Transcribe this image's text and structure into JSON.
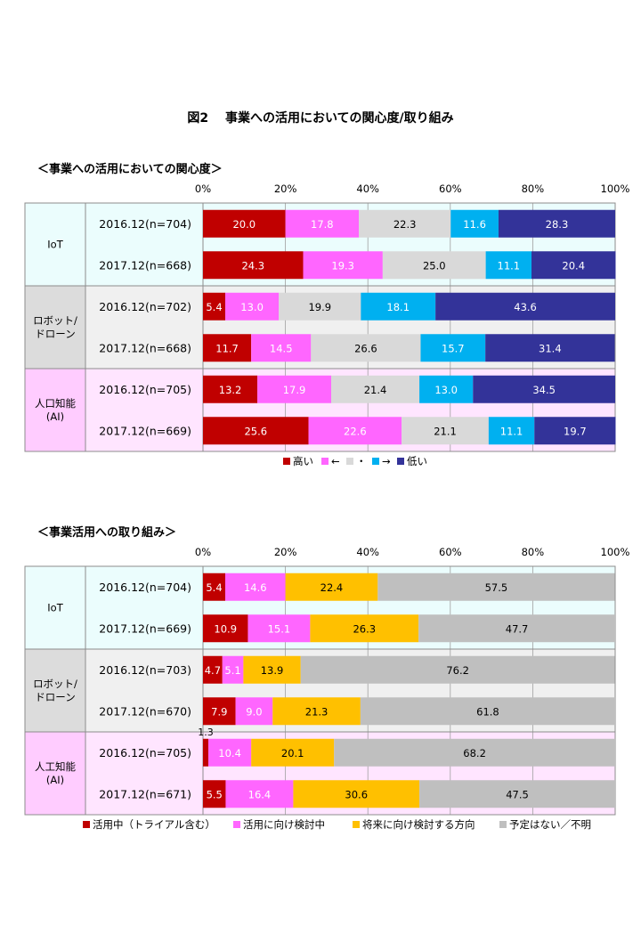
{
  "figure_title": "図2　 事業への活用においての関心度/取り組み",
  "chart_data": [
    {
      "type": "bar",
      "stacked": "100%",
      "orientation": "horizontal",
      "title": "＜事業への活用においての関心度＞",
      "xlim": [
        0,
        100
      ],
      "x_ticks": [
        "0%",
        "20%",
        "40%",
        "60%",
        "80%",
        "100%"
      ],
      "grid": true,
      "legend_placement": "bottom",
      "groups": [
        {
          "name": "IoT",
          "bg": "#ebfdfd",
          "rows": [
            {
              "label": "2016.12(n=704)",
              "values": [
                20.0,
                17.8,
                22.3,
                11.6,
                28.3
              ]
            },
            {
              "label": "2017.12(n=668)",
              "values": [
                24.3,
                19.3,
                25.0,
                11.1,
                20.4
              ]
            }
          ]
        },
        {
          "name": "ロボット/\nドローン",
          "bg": "#f0f0f0",
          "rows": [
            {
              "label": "2016.12(n=702)",
              "values": [
                5.4,
                13.0,
                19.9,
                18.1,
                43.6
              ]
            },
            {
              "label": "2017.12(n=668)",
              "values": [
                11.7,
                14.5,
                26.6,
                15.7,
                31.4
              ]
            }
          ]
        },
        {
          "name": "人口知能\n(AI)",
          "bg": "#ffe5ff",
          "rows": [
            {
              "label": "2016.12(n=705)",
              "values": [
                13.2,
                17.9,
                21.4,
                13.0,
                34.5
              ]
            },
            {
              "label": "2017.12(n=669)",
              "values": [
                25.6,
                22.6,
                21.1,
                11.1,
                19.7
              ]
            }
          ]
        }
      ],
      "series": [
        {
          "name": "高い",
          "color": "#c00000",
          "text_color": "#ffffff"
        },
        {
          "name": "←",
          "color": "#ff66ff",
          "text_color": "#ffffff"
        },
        {
          "name": "・",
          "color": "#d9d9d9",
          "text_color": "#000000"
        },
        {
          "name": "→",
          "color": "#00b0f0",
          "text_color": "#ffffff"
        },
        {
          "name": "低い",
          "color": "#333399",
          "text_color": "#ffffff"
        }
      ]
    },
    {
      "type": "bar",
      "stacked": "100%",
      "orientation": "horizontal",
      "title": "＜事業活用への取り組み＞",
      "xlim": [
        0,
        100
      ],
      "x_ticks": [
        "0%",
        "20%",
        "40%",
        "60%",
        "80%",
        "100%"
      ],
      "grid": true,
      "legend_placement": "bottom",
      "groups": [
        {
          "name": "IoT",
          "bg": "#ebfdfd",
          "rows": [
            {
              "label": "2016.12(n=704)",
              "values": [
                5.4,
                14.6,
                22.4,
                57.5
              ]
            },
            {
              "label": "2017.12(n=669)",
              "values": [
                10.9,
                15.1,
                26.3,
                47.7
              ]
            }
          ]
        },
        {
          "name": "ロボット/\nドローン",
          "bg": "#f0f0f0",
          "rows": [
            {
              "label": "2016.12(n=703)",
              "values": [
                4.7,
                5.1,
                13.9,
                76.2
              ]
            },
            {
              "label": "2017.12(n=670)",
              "values": [
                7.9,
                9.0,
                21.3,
                61.8
              ]
            }
          ]
        },
        {
          "name": "人工知能\n(AI)",
          "bg": "#ffe5ff",
          "rows": [
            {
              "label": "2016.12(n=705)",
              "values": [
                1.3,
                10.4,
                20.1,
                68.2
              ]
            },
            {
              "label": "2017.12(n=671)",
              "values": [
                5.5,
                16.4,
                30.6,
                47.5
              ]
            }
          ]
        }
      ],
      "series": [
        {
          "name": "活用中（トライアル含む）",
          "color": "#c00000",
          "text_color": "#ffffff"
        },
        {
          "name": "活用に向け検討中",
          "color": "#ff66ff",
          "text_color": "#ffffff"
        },
        {
          "name": "将来に向け検討する方向",
          "color": "#ffc000",
          "text_color": "#000000"
        },
        {
          "name": "予定はない／不明",
          "color": "#bfbfbf",
          "text_color": "#000000"
        }
      ]
    }
  ]
}
